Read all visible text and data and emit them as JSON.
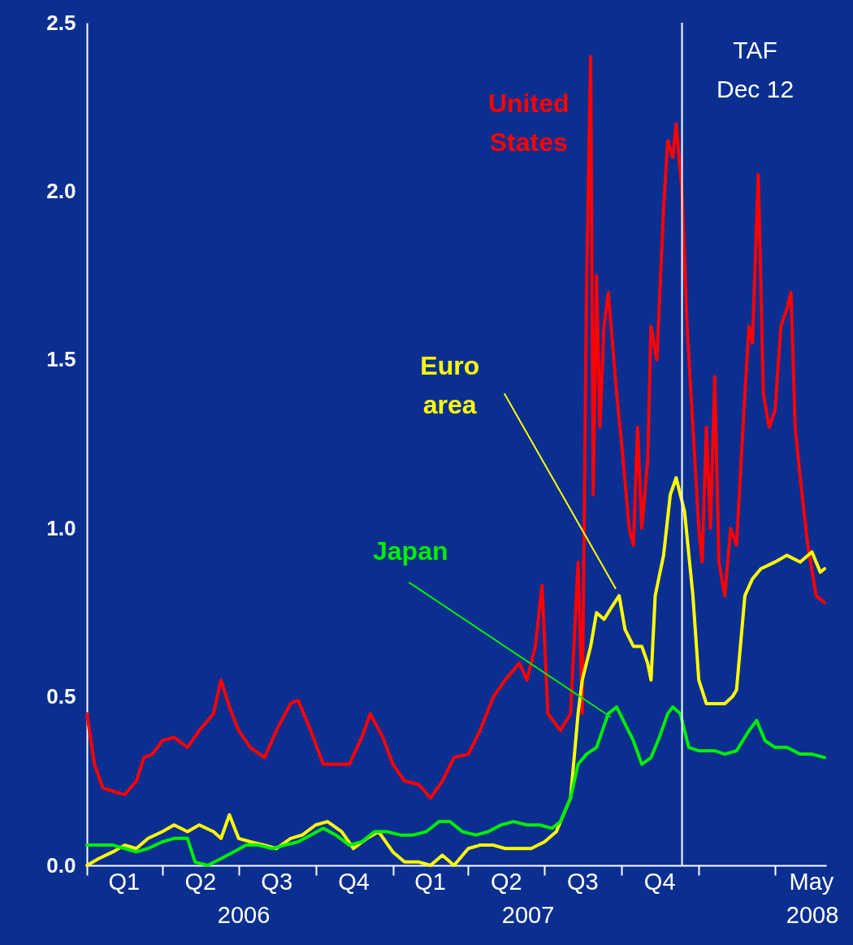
{
  "chart_data": {
    "type": "line",
    "line_style": "solid",
    "xlim": [
      "2006-01-01",
      "2008-06-01"
    ],
    "ylim": [
      0,
      2.5
    ],
    "xticks": [
      {
        "value": "2006-01-01",
        "label": null
      },
      {
        "value": "2006-02-14",
        "label": "Q1"
      },
      {
        "value": "2006-04-01",
        "label": null
      },
      {
        "value": "2006-05-16",
        "label": "Q2"
      },
      {
        "value": "2006-07-01",
        "label": null
      },
      {
        "value": "2006-08-15",
        "label": "Q3"
      },
      {
        "value": "2006-10-01",
        "label": null
      },
      {
        "value": "2006-11-15",
        "label": "Q4"
      },
      {
        "value": "2007-01-01",
        "label": null
      },
      {
        "value": "2007-02-14",
        "label": "Q1"
      },
      {
        "value": "2007-04-01",
        "label": null
      },
      {
        "value": "2007-05-16",
        "label": "Q2"
      },
      {
        "value": "2007-07-01",
        "label": null
      },
      {
        "value": "2007-08-15",
        "label": "Q3"
      },
      {
        "value": "2007-10-01",
        "label": null
      },
      {
        "value": "2007-11-15",
        "label": "Q4"
      },
      {
        "value": "2008-01-01",
        "label": null
      },
      {
        "value": "2008-04-01",
        "label": null
      },
      {
        "value": "2008-05-14",
        "label": "May"
      }
    ],
    "annotations": [
      "2006",
      "2007",
      "2008"
    ],
    "yticks": [
      {
        "value": 0,
        "label": "0.0"
      },
      {
        "value": 0.5,
        "label": "0.5"
      },
      {
        "value": 1,
        "label": "1.0"
      },
      {
        "value": 1.5,
        "label": "1.5"
      },
      {
        "value": 2,
        "label": "2.0"
      },
      {
        "value": 2.5,
        "label": "2.5"
      }
    ],
    "ref_lines": [
      {
        "axis": "x",
        "value": "2007-12-12",
        "label": "TAF Dec 12",
        "color": "#ffffff"
      }
    ],
    "series": [
      {
        "name": "United States",
        "color": "#ff0000",
        "x": [
          "2006-01-01",
          "2006-01-10",
          "2006-01-20",
          "2006-02-01",
          "2006-02-15",
          "2006-03-01",
          "2006-03-10",
          "2006-03-20",
          "2006-04-01",
          "2006-04-15",
          "2006-05-01",
          "2006-05-15",
          "2006-06-01",
          "2006-06-10",
          "2006-06-20",
          "2006-07-01",
          "2006-07-15",
          "2006-08-01",
          "2006-08-15",
          "2006-09-01",
          "2006-09-10",
          "2006-09-25",
          "2006-10-10",
          "2006-10-25",
          "2006-11-10",
          "2006-11-25",
          "2006-12-05",
          "2006-12-20",
          "2007-01-01",
          "2007-01-15",
          "2007-02-01",
          "2007-02-15",
          "2007-03-01",
          "2007-03-15",
          "2007-04-01",
          "2007-04-15",
          "2007-05-01",
          "2007-05-15",
          "2007-06-01",
          "2007-06-10",
          "2007-06-20",
          "2007-06-28",
          "2007-07-05",
          "2007-07-20",
          "2007-08-01",
          "2007-08-10",
          "2007-08-15",
          "2007-08-20",
          "2007-08-25",
          "2007-08-28",
          "2007-09-01",
          "2007-09-05",
          "2007-09-10",
          "2007-09-15",
          "2007-09-20",
          "2007-09-25",
          "2007-10-01",
          "2007-10-10",
          "2007-10-15",
          "2007-10-20",
          "2007-10-25",
          "2007-11-01",
          "2007-11-05",
          "2007-11-12",
          "2007-11-20",
          "2007-11-25",
          "2007-12-01",
          "2007-12-05",
          "2007-12-12",
          "2007-12-18",
          "2007-12-25",
          "2008-01-01",
          "2008-01-05",
          "2008-01-10",
          "2008-01-15",
          "2008-01-20",
          "2008-01-25",
          "2008-02-01",
          "2008-02-08",
          "2008-02-15",
          "2008-02-25",
          "2008-03-01",
          "2008-03-05",
          "2008-03-12",
          "2008-03-18",
          "2008-03-25",
          "2008-04-01",
          "2008-04-08",
          "2008-04-15",
          "2008-04-20",
          "2008-04-25",
          "2008-05-01",
          "2008-05-10",
          "2008-05-20",
          "2008-05-30"
        ],
        "values": [
          0.45,
          0.3,
          0.23,
          0.22,
          0.21,
          0.25,
          0.32,
          0.33,
          0.37,
          0.38,
          0.35,
          0.4,
          0.45,
          0.55,
          0.47,
          0.4,
          0.35,
          0.32,
          0.4,
          0.48,
          0.49,
          0.4,
          0.3,
          0.3,
          0.3,
          0.38,
          0.45,
          0.38,
          0.3,
          0.25,
          0.24,
          0.2,
          0.25,
          0.32,
          0.33,
          0.4,
          0.5,
          0.55,
          0.6,
          0.55,
          0.65,
          0.83,
          0.45,
          0.4,
          0.45,
          0.9,
          0.45,
          1.7,
          2.4,
          1.1,
          1.75,
          1.3,
          1.6,
          1.7,
          1.55,
          1.4,
          1.25,
          1.0,
          0.95,
          1.3,
          1.0,
          1.2,
          1.6,
          1.5,
          1.95,
          2.15,
          2.1,
          2.2,
          2.0,
          1.6,
          1.3,
          1.0,
          0.9,
          1.3,
          1.0,
          1.45,
          0.9,
          0.8,
          1.0,
          0.95,
          1.4,
          1.6,
          1.55,
          2.05,
          1.4,
          1.3,
          1.35,
          1.6,
          1.65,
          1.7,
          1.3,
          1.15,
          0.95,
          0.8,
          0.78
        ]
      },
      {
        "name": "Euro area",
        "color": "#ffff00",
        "x": [
          "2006-01-01",
          "2006-01-15",
          "2006-02-01",
          "2006-02-15",
          "2006-03-01",
          "2006-03-15",
          "2006-04-01",
          "2006-04-15",
          "2006-05-01",
          "2006-05-15",
          "2006-06-01",
          "2006-06-10",
          "2006-06-20",
          "2006-07-01",
          "2006-07-15",
          "2006-08-01",
          "2006-08-15",
          "2006-09-01",
          "2006-09-15",
          "2006-10-01",
          "2006-10-15",
          "2006-11-01",
          "2006-11-15",
          "2006-12-01",
          "2006-12-15",
          "2007-01-01",
          "2007-01-15",
          "2007-02-01",
          "2007-02-15",
          "2007-03-01",
          "2007-03-15",
          "2007-04-01",
          "2007-04-15",
          "2007-05-01",
          "2007-05-15",
          "2007-06-01",
          "2007-06-15",
          "2007-07-01",
          "2007-07-15",
          "2007-08-01",
          "2007-08-10",
          "2007-08-15",
          "2007-08-25",
          "2007-09-01",
          "2007-09-10",
          "2007-09-20",
          "2007-09-28",
          "2007-10-05",
          "2007-10-15",
          "2007-10-25",
          "2007-11-01",
          "2007-11-05",
          "2007-11-10",
          "2007-11-20",
          "2007-11-28",
          "2007-12-05",
          "2007-12-15",
          "2007-12-25",
          "2008-01-01",
          "2008-01-10",
          "2008-01-20",
          "2008-02-01",
          "2008-02-10",
          "2008-02-15",
          "2008-02-25",
          "2008-03-05",
          "2008-03-15",
          "2008-04-01",
          "2008-04-15",
          "2008-05-01",
          "2008-05-15",
          "2008-05-25",
          "2008-05-30"
        ],
        "values": [
          0.0,
          0.02,
          0.04,
          0.06,
          0.05,
          0.08,
          0.1,
          0.12,
          0.1,
          0.12,
          0.1,
          0.08,
          0.15,
          0.08,
          0.07,
          0.06,
          0.05,
          0.08,
          0.09,
          0.12,
          0.13,
          0.1,
          0.05,
          0.08,
          0.1,
          0.04,
          0.01,
          0.01,
          0.0,
          0.03,
          0.0,
          0.05,
          0.06,
          0.06,
          0.05,
          0.05,
          0.05,
          0.07,
          0.1,
          0.2,
          0.45,
          0.55,
          0.65,
          0.75,
          0.73,
          0.77,
          0.8,
          0.7,
          0.65,
          0.65,
          0.6,
          0.55,
          0.8,
          0.92,
          1.1,
          1.15,
          1.05,
          0.8,
          0.55,
          0.48,
          0.48,
          0.48,
          0.5,
          0.52,
          0.8,
          0.85,
          0.88,
          0.9,
          0.92,
          0.9,
          0.93,
          0.87,
          0.88
        ]
      },
      {
        "name": "Japan",
        "color": "#00ee00",
        "x": [
          "2006-01-01",
          "2006-02-01",
          "2006-02-15",
          "2006-03-01",
          "2006-03-15",
          "2006-04-01",
          "2006-04-15",
          "2006-05-01",
          "2006-05-10",
          "2006-05-25",
          "2006-06-10",
          "2006-06-25",
          "2006-07-10",
          "2006-07-25",
          "2006-08-10",
          "2006-08-25",
          "2006-09-10",
          "2006-09-25",
          "2006-10-10",
          "2006-10-25",
          "2006-11-10",
          "2006-11-25",
          "2006-12-10",
          "2006-12-25",
          "2007-01-10",
          "2007-01-25",
          "2007-02-10",
          "2007-02-25",
          "2007-03-10",
          "2007-03-25",
          "2007-04-10",
          "2007-04-25",
          "2007-05-10",
          "2007-05-25",
          "2007-06-10",
          "2007-06-25",
          "2007-07-10",
          "2007-07-20",
          "2007-08-01",
          "2007-08-10",
          "2007-08-20",
          "2007-09-01",
          "2007-09-15",
          "2007-09-25",
          "2007-10-05",
          "2007-10-15",
          "2007-10-25",
          "2007-11-05",
          "2007-11-15",
          "2007-11-25",
          "2007-12-01",
          "2007-12-10",
          "2007-12-20",
          "2008-01-01",
          "2008-01-20",
          "2008-02-01",
          "2008-02-15",
          "2008-03-01",
          "2008-03-10",
          "2008-03-20",
          "2008-04-01",
          "2008-04-15",
          "2008-05-01",
          "2008-05-15",
          "2008-05-30"
        ],
        "values": [
          0.06,
          0.06,
          0.05,
          0.04,
          0.05,
          0.07,
          0.08,
          0.08,
          0.01,
          0.0,
          0.02,
          0.04,
          0.06,
          0.06,
          0.05,
          0.06,
          0.07,
          0.09,
          0.11,
          0.09,
          0.06,
          0.07,
          0.1,
          0.1,
          0.09,
          0.09,
          0.1,
          0.13,
          0.13,
          0.1,
          0.09,
          0.1,
          0.12,
          0.13,
          0.12,
          0.12,
          0.11,
          0.13,
          0.2,
          0.3,
          0.33,
          0.35,
          0.45,
          0.47,
          0.42,
          0.37,
          0.3,
          0.32,
          0.38,
          0.45,
          0.47,
          0.45,
          0.35,
          0.34,
          0.34,
          0.33,
          0.34,
          0.4,
          0.43,
          0.37,
          0.35,
          0.35,
          0.33,
          0.33,
          0.32
        ]
      }
    ]
  }
}
